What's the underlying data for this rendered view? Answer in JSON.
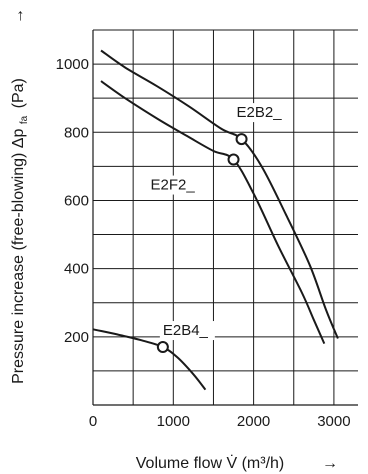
{
  "chart_data": {
    "type": "line",
    "title": "",
    "xlabel": "Volume flow V̇ (m³/h)",
    "ylabel": "Pressure increase (free-blowing) Δp",
    "ylabel_sub": "fa",
    "ylabel_unit": "(Pa)",
    "arrow": "→",
    "xlim": [
      0,
      3300
    ],
    "ylim": [
      0,
      1100
    ],
    "x_ticks": [
      0,
      1000,
      2000,
      3000
    ],
    "x_tick_labels": [
      "0",
      "1000",
      "2000",
      "3000"
    ],
    "y_ticks": [
      200,
      400,
      600,
      800,
      1000
    ],
    "y_tick_labels": [
      "200",
      "400",
      "600",
      "800",
      "1000"
    ],
    "grid": true,
    "series": [
      {
        "name": "E2B2_",
        "x": [
          100,
          400,
          800,
          1200,
          1600,
          1850,
          2100,
          2400,
          2700,
          2900,
          3050
        ],
        "y": [
          1040,
          990,
          935,
          875,
          810,
          780,
          700,
          560,
          410,
          280,
          195
        ],
        "marker": {
          "x": 1850,
          "y": 780
        }
      },
      {
        "name": "E2F2_",
        "x": [
          100,
          400,
          800,
          1200,
          1500,
          1750,
          2000,
          2300,
          2600,
          2750,
          2880
        ],
        "y": [
          950,
          900,
          840,
          785,
          745,
          720,
          620,
          470,
          330,
          250,
          180
        ],
        "marker": {
          "x": 1750,
          "y": 720
        }
      },
      {
        "name": "E2B4_",
        "x": [
          0,
          300,
          600,
          870,
          1050,
          1250,
          1400
        ],
        "y": [
          222,
          207,
          190,
          170,
          140,
          90,
          45
        ],
        "marker": {
          "x": 870,
          "y": 170
        }
      }
    ]
  }
}
